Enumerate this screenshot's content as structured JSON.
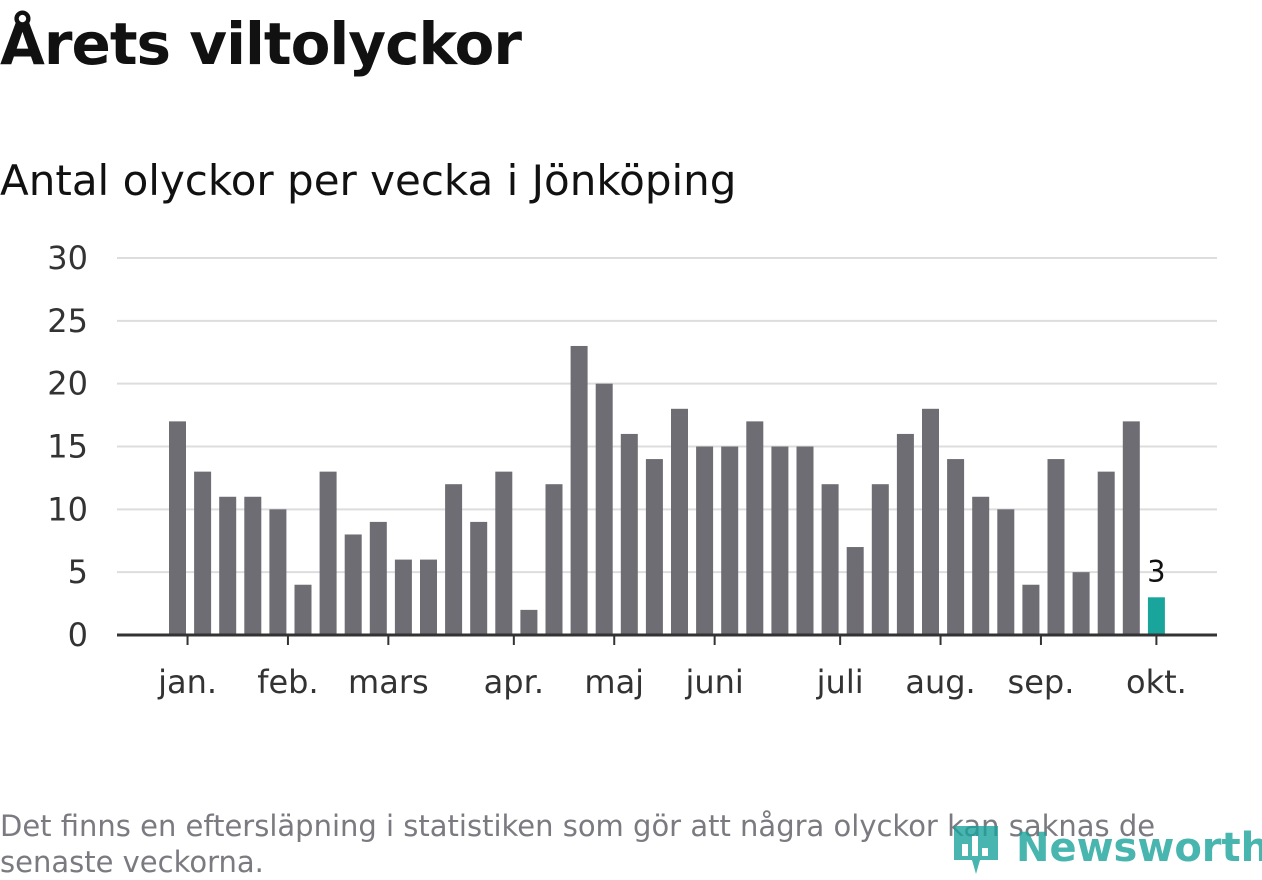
{
  "title": "Årets viltolyckor",
  "subtitle": "Antal olyckor per vecka i Jönköping",
  "footnote": "Det finns en eftersläpning i statistiken som gör att några olyckor kan saknas de senaste veckorna.",
  "brand": {
    "name": "Newsworthy",
    "color": "#1ba39c"
  },
  "chart_data": {
    "type": "bar",
    "ylim": [
      0,
      30
    ],
    "yticks": [
      0,
      5,
      10,
      15,
      20,
      25,
      30
    ],
    "grid": true,
    "bar_color": "#6e6d73",
    "highlight_color": "#1aa59c",
    "values": [
      17,
      13,
      11,
      11,
      10,
      4,
      13,
      8,
      9,
      6,
      6,
      12,
      9,
      13,
      2,
      12,
      23,
      20,
      16,
      14,
      18,
      15,
      15,
      17,
      15,
      15,
      12,
      7,
      12,
      16,
      18,
      14,
      11,
      10,
      4,
      14,
      5,
      13,
      17,
      3
    ],
    "highlight_index": 39,
    "highlight_label": "3",
    "month_labels": [
      {
        "label": "jan.",
        "bar": 0.4
      },
      {
        "label": "feb.",
        "bar": 4.4
      },
      {
        "label": "mars",
        "bar": 8.4
      },
      {
        "label": "apr.",
        "bar": 13.4
      },
      {
        "label": "maj",
        "bar": 17.4
      },
      {
        "label": "juni",
        "bar": 21.4
      },
      {
        "label": "juli",
        "bar": 26.4
      },
      {
        "label": "aug.",
        "bar": 30.4
      },
      {
        "label": "sep.",
        "bar": 34.4
      },
      {
        "label": "okt.",
        "bar": 39.0
      }
    ]
  }
}
